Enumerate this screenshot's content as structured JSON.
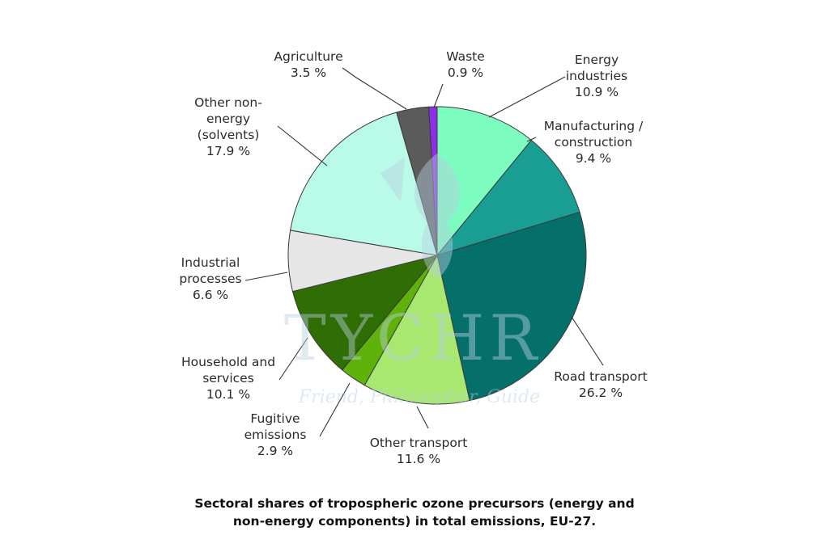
{
  "chart_data": {
    "type": "pie",
    "start_angle_deg": 0,
    "direction": "clockwise",
    "slices": [
      {
        "label_lines": [
          "Energy",
          "industries"
        ],
        "value_text": "10.9 %",
        "value": 10.9,
        "color": "#7dfcc0"
      },
      {
        "label_lines": [
          "Manufacturing /",
          "construction"
        ],
        "value_text": "9.4 %",
        "value": 9.4,
        "color": "#1a9e93"
      },
      {
        "label_lines": [
          "Road transport"
        ],
        "value_text": "26.2 %",
        "value": 26.2,
        "color": "#05706a"
      },
      {
        "label_lines": [
          "Other transport"
        ],
        "value_text": "11.6 %",
        "value": 11.6,
        "color": "#a8e870"
      },
      {
        "label_lines": [
          "Fugitive",
          "emissions"
        ],
        "value_text": "2.9 %",
        "value": 2.9,
        "color": "#5fb20a"
      },
      {
        "label_lines": [
          "Household and",
          "services"
        ],
        "value_text": "10.1 %",
        "value": 10.1,
        "color": "#2f6d05"
      },
      {
        "label_lines": [
          "Industrial",
          "processes"
        ],
        "value_text": "6.6 %",
        "value": 6.6,
        "color": "#e6e6e6"
      },
      {
        "label_lines": [
          "Other non-",
          "energy",
          "(solvents)"
        ],
        "value_text": "17.9 %",
        "value": 17.9,
        "color": "#b9fbe8"
      },
      {
        "label_lines": [
          "Agriculture"
        ],
        "value_text": "3.5 %",
        "value": 3.5,
        "color": "#5b5b5b"
      },
      {
        "label_lines": [
          "Waste"
        ],
        "value_text": "0.9 %",
        "value": 0.9,
        "color": "#8b30e6"
      }
    ]
  },
  "caption": {
    "line1": "Sectoral shares of tropospheric ozone precursors (energy and",
    "line2": "non-energy components) in total emissions, EU-27."
  },
  "watermark": {
    "brand": "TYCHR",
    "tagline": "Friend, Philosopher, Guide",
    "color": "#b8cfe0"
  }
}
